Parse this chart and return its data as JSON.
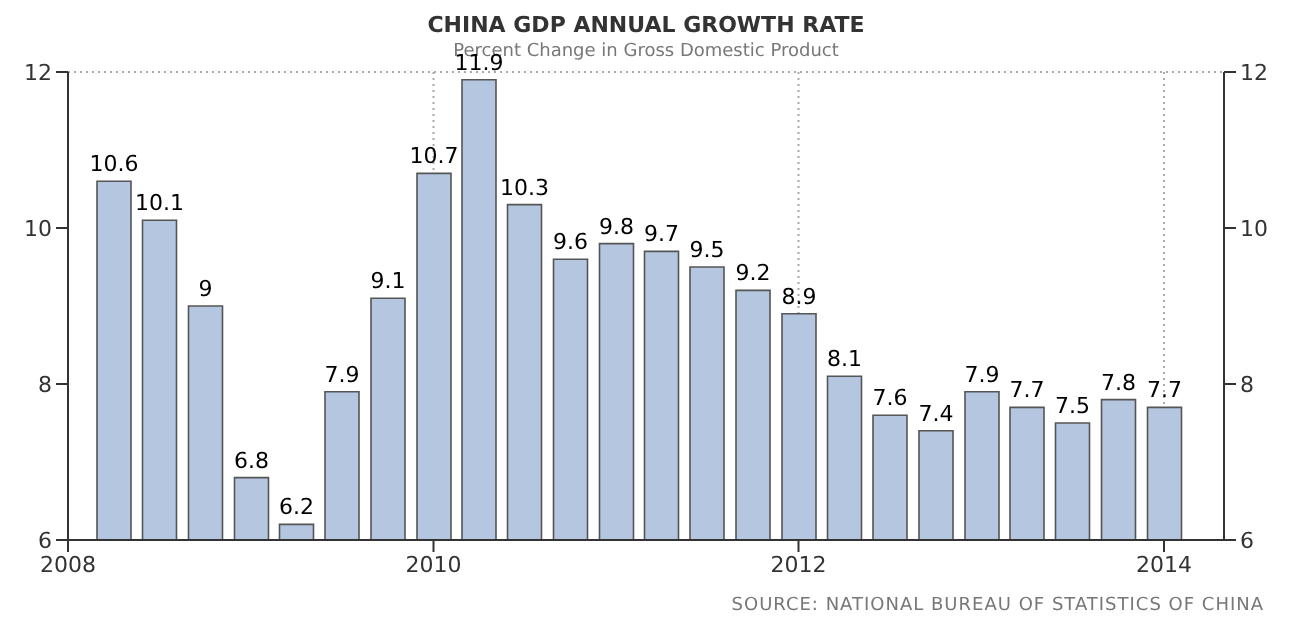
{
  "chart_data": {
    "type": "bar",
    "title": "CHINA GDP ANNUAL GROWTH RATE",
    "subtitle": "Percent Change in Gross Domestic Product",
    "x": [
      "2008-04",
      "2008-07",
      "2008-10",
      "2009-01",
      "2009-04",
      "2009-07",
      "2009-10",
      "2010-01",
      "2010-04",
      "2010-07",
      "2010-10",
      "2011-01",
      "2011-04",
      "2011-07",
      "2011-10",
      "2012-01",
      "2012-04",
      "2012-07",
      "2012-10",
      "2013-01",
      "2013-04",
      "2013-07",
      "2013-10",
      "2014-01"
    ],
    "values": [
      10.6,
      10.1,
      9,
      6.8,
      6.2,
      7.9,
      9.1,
      10.7,
      11.9,
      10.3,
      9.6,
      9.8,
      9.7,
      9.5,
      9.2,
      8.9,
      8.1,
      7.6,
      7.4,
      7.9,
      7.7,
      7.5,
      7.8,
      7.7
    ],
    "color": "#b4c6e0",
    "data_labels": true,
    "xlim": [
      "2008",
      "2014-05"
    ],
    "xticks": [
      "2008",
      "2010",
      "2012",
      "2014"
    ],
    "ylim": [
      6,
      12
    ],
    "yticks": [
      6,
      8,
      10,
      12
    ],
    "y2lim": [
      6,
      12
    ],
    "y2ticks": [
      6,
      8,
      10,
      12
    ],
    "grid": true,
    "annotations": [
      "SOURCE: NATIONAL BUREAU OF STATISTICS OF CHINA"
    ]
  }
}
